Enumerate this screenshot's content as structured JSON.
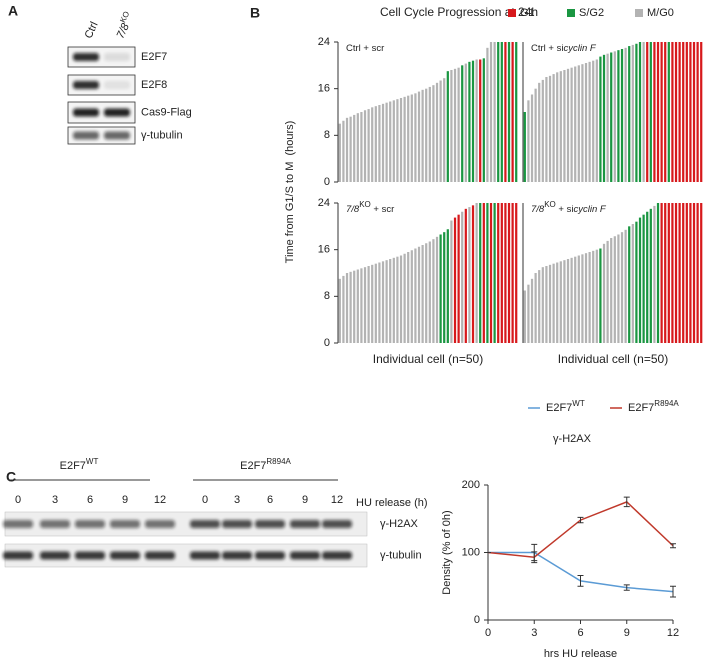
{
  "panel_a": {
    "label": "A",
    "lanes": [
      {
        "text": "Ctrl"
      },
      {
        "text": "7/8",
        "sup": "KO"
      }
    ],
    "rows": [
      "E2F7",
      "E2F8",
      "Cas9-Flag",
      "γ-tubulin"
    ]
  },
  "panel_b": {
    "label": "B",
    "title": "Cell Cycle Progression at 24h",
    "legend": [
      {
        "name": "G1",
        "color": "#d7191c"
      },
      {
        "name": "S/G2",
        "color": "#1a9641"
      },
      {
        "name": "M/G0",
        "color": "#b3b3b3"
      }
    ],
    "ylabel": "Time from G1/S to M  (hours)"
  },
  "panel_c": {
    "label": "C",
    "groups": [
      {
        "name": "E2F7",
        "sup": "WT",
        "lanes": [
          "0",
          "3",
          "6",
          "9",
          "12"
        ]
      },
      {
        "name": "E2F7",
        "sup": "R894A",
        "lanes": [
          "0",
          "3",
          "6",
          "9",
          "12"
        ]
      }
    ],
    "lanes_title": "HU release (h)",
    "rows": [
      "γ-H2AX",
      "γ-tubulin"
    ]
  },
  "chart_data": [
    {
      "type": "bar",
      "label_parts": [
        {
          "text": "Ctrl + scr"
        }
      ],
      "ylim": [
        0,
        24
      ],
      "yticks": [
        0,
        8,
        16,
        24
      ],
      "values": [
        10,
        10.5,
        11,
        11.2,
        11.5,
        11.8,
        12,
        12.3,
        12.5,
        12.8,
        13,
        13.2,
        13.4,
        13.6,
        13.8,
        14,
        14.2,
        14.4,
        14.6,
        14.8,
        15,
        15.2,
        15.5,
        15.8,
        16,
        16.3,
        16.6,
        17,
        17.4,
        17.8,
        19,
        19.2,
        19.4,
        19.6,
        20,
        20.3,
        20.6,
        20.8,
        21,
        21,
        21.2,
        23,
        24,
        24,
        24,
        24,
        24,
        24,
        24,
        24
      ],
      "colors": [
        "#b3b3b3",
        "#b3b3b3",
        "#b3b3b3",
        "#b3b3b3",
        "#b3b3b3",
        "#b3b3b3",
        "#b3b3b3",
        "#b3b3b3",
        "#b3b3b3",
        "#b3b3b3",
        "#b3b3b3",
        "#b3b3b3",
        "#b3b3b3",
        "#b3b3b3",
        "#b3b3b3",
        "#b3b3b3",
        "#b3b3b3",
        "#b3b3b3",
        "#b3b3b3",
        "#b3b3b3",
        "#b3b3b3",
        "#b3b3b3",
        "#b3b3b3",
        "#b3b3b3",
        "#b3b3b3",
        "#b3b3b3",
        "#b3b3b3",
        "#b3b3b3",
        "#b3b3b3",
        "#b3b3b3",
        "#1a9641",
        "#b3b3b3",
        "#b3b3b3",
        "#b3b3b3",
        "#1a9641",
        "#b3b3b3",
        "#1a9641",
        "#1a9641",
        "#b3b3b3",
        "#d7191c",
        "#1a9641",
        "#b3b3b3",
        "#b3b3b3",
        "#b3b3b3",
        "#1a9641",
        "#1a9641",
        "#d7191c",
        "#1a9641",
        "#d7191c",
        "#1a9641"
      ]
    },
    {
      "type": "bar",
      "label_parts": [
        {
          "text": "Ctrl + si"
        },
        {
          "text": "cyclin F",
          "style": "italic"
        }
      ],
      "ylim": [
        0,
        24
      ],
      "values": [
        12,
        14,
        15,
        16,
        17,
        17.5,
        18,
        18.2,
        18.5,
        18.8,
        19,
        19.2,
        19.4,
        19.6,
        19.8,
        20,
        20.2,
        20.4,
        20.6,
        20.8,
        21,
        21.5,
        21.8,
        22,
        22.2,
        22.4,
        22.6,
        22.8,
        23,
        23.3,
        23.5,
        23.7,
        24,
        24,
        24,
        24,
        24,
        24,
        24,
        24,
        24,
        24,
        24,
        24,
        24,
        24,
        24,
        24,
        24,
        24
      ],
      "colors": [
        "#1a9641",
        "#b3b3b3",
        "#b3b3b3",
        "#b3b3b3",
        "#b3b3b3",
        "#b3b3b3",
        "#b3b3b3",
        "#b3b3b3",
        "#b3b3b3",
        "#b3b3b3",
        "#b3b3b3",
        "#b3b3b3",
        "#b3b3b3",
        "#b3b3b3",
        "#b3b3b3",
        "#b3b3b3",
        "#b3b3b3",
        "#b3b3b3",
        "#b3b3b3",
        "#b3b3b3",
        "#b3b3b3",
        "#1a9641",
        "#1a9641",
        "#b3b3b3",
        "#1a9641",
        "#b3b3b3",
        "#1a9641",
        "#1a9641",
        "#b3b3b3",
        "#1a9641",
        "#b3b3b3",
        "#1a9641",
        "#1a9641",
        "#b3b3b3",
        "#d7191c",
        "#1a9641",
        "#d7191c",
        "#d7191c",
        "#d7191c",
        "#d7191c",
        "#1a9641",
        "#d7191c",
        "#d7191c",
        "#d7191c",
        "#d7191c",
        "#d7191c",
        "#d7191c",
        "#d7191c",
        "#d7191c",
        "#d7191c"
      ]
    },
    {
      "type": "bar",
      "label_parts": [
        {
          "text": "7/8",
          "style": "italic"
        },
        {
          "text": "KO",
          "style": "sup"
        },
        {
          "text": " + scr"
        }
      ],
      "xlabel": "Individual cell (n=50)",
      "ylim": [
        0,
        24
      ],
      "yticks": [
        0,
        8,
        16,
        24
      ],
      "values": [
        11,
        11.5,
        12,
        12.2,
        12.4,
        12.6,
        12.8,
        13,
        13.2,
        13.4,
        13.6,
        13.8,
        14,
        14.2,
        14.4,
        14.6,
        14.8,
        15,
        15.3,
        15.6,
        15.9,
        16.2,
        16.5,
        16.8,
        17.1,
        17.4,
        17.8,
        18.2,
        18.6,
        19,
        19.5,
        21,
        21.5,
        22,
        22.5,
        23,
        23.3,
        23.6,
        24,
        24,
        24,
        24,
        24,
        24,
        24,
        24,
        24,
        24,
        24,
        24
      ],
      "colors": [
        "#b3b3b3",
        "#b3b3b3",
        "#b3b3b3",
        "#b3b3b3",
        "#b3b3b3",
        "#b3b3b3",
        "#b3b3b3",
        "#b3b3b3",
        "#b3b3b3",
        "#b3b3b3",
        "#b3b3b3",
        "#b3b3b3",
        "#b3b3b3",
        "#b3b3b3",
        "#b3b3b3",
        "#b3b3b3",
        "#b3b3b3",
        "#b3b3b3",
        "#b3b3b3",
        "#b3b3b3",
        "#b3b3b3",
        "#b3b3b3",
        "#b3b3b3",
        "#b3b3b3",
        "#b3b3b3",
        "#b3b3b3",
        "#b3b3b3",
        "#b3b3b3",
        "#1a9641",
        "#1a9641",
        "#1a9641",
        "#b3b3b3",
        "#d7191c",
        "#d7191c",
        "#b3b3b3",
        "#d7191c",
        "#b3b3b3",
        "#d7191c",
        "#b3b3b3",
        "#1a9641",
        "#d7191c",
        "#1a9641",
        "#d7191c",
        "#1a9641",
        "#d7191c",
        "#d7191c",
        "#d7191c",
        "#d7191c",
        "#d7191c",
        "#d7191c"
      ]
    },
    {
      "type": "bar",
      "label_parts": [
        {
          "text": "7/8",
          "style": "italic"
        },
        {
          "text": "KO",
          "style": "sup"
        },
        {
          "text": " + si"
        },
        {
          "text": "cyclin F",
          "style": "italic"
        }
      ],
      "xlabel": "Individual cell (n=50)",
      "ylim": [
        0,
        24
      ],
      "values": [
        9,
        10,
        11,
        12,
        12.5,
        13,
        13.2,
        13.4,
        13.6,
        13.8,
        14,
        14.2,
        14.4,
        14.6,
        14.8,
        15,
        15.2,
        15.4,
        15.6,
        15.8,
        16,
        16.2,
        17,
        17.5,
        18,
        18.3,
        18.6,
        19,
        19.4,
        20,
        20.4,
        20.8,
        21.5,
        22,
        22.5,
        23,
        23.5,
        24,
        24,
        24,
        24,
        24,
        24,
        24,
        24,
        24,
        24,
        24,
        24,
        24
      ],
      "colors": [
        "#b3b3b3",
        "#b3b3b3",
        "#b3b3b3",
        "#b3b3b3",
        "#b3b3b3",
        "#b3b3b3",
        "#b3b3b3",
        "#b3b3b3",
        "#b3b3b3",
        "#b3b3b3",
        "#b3b3b3",
        "#b3b3b3",
        "#b3b3b3",
        "#b3b3b3",
        "#b3b3b3",
        "#b3b3b3",
        "#b3b3b3",
        "#b3b3b3",
        "#b3b3b3",
        "#b3b3b3",
        "#b3b3b3",
        "#1a9641",
        "#b3b3b3",
        "#b3b3b3",
        "#b3b3b3",
        "#b3b3b3",
        "#b3b3b3",
        "#b3b3b3",
        "#b3b3b3",
        "#1a9641",
        "#b3b3b3",
        "#1a9641",
        "#1a9641",
        "#1a9641",
        "#1a9641",
        "#1a9641",
        "#b3b3b3",
        "#1a9641",
        "#d7191c",
        "#d7191c",
        "#d7191c",
        "#d7191c",
        "#d7191c",
        "#d7191c",
        "#d7191c",
        "#d7191c",
        "#d7191c",
        "#d7191c",
        "#d7191c",
        "#d7191c"
      ]
    },
    {
      "type": "line",
      "title": "γ-H2AX",
      "xlabel": "hrs HU release",
      "ylabel": "Density (% of 0h)",
      "x": [
        0,
        3,
        6,
        9,
        12
      ],
      "xlim": [
        0,
        12
      ],
      "xticks": [
        0,
        3,
        6,
        9,
        12
      ],
      "ylim": [
        0,
        200
      ],
      "yticks": [
        0,
        100,
        200
      ],
      "series": [
        {
          "name": "E2F7",
          "name_sup": "WT",
          "color": "#5b9bd5",
          "values": [
            100,
            100,
            58,
            48,
            42
          ],
          "errors": [
            0,
            12,
            8,
            4,
            8
          ]
        },
        {
          "name": "E2F7",
          "name_sup": "R894A",
          "color": "#c0392b",
          "values": [
            100,
            93,
            148,
            175,
            110
          ],
          "errors": [
            0,
            8,
            4,
            7,
            3
          ]
        }
      ]
    }
  ]
}
